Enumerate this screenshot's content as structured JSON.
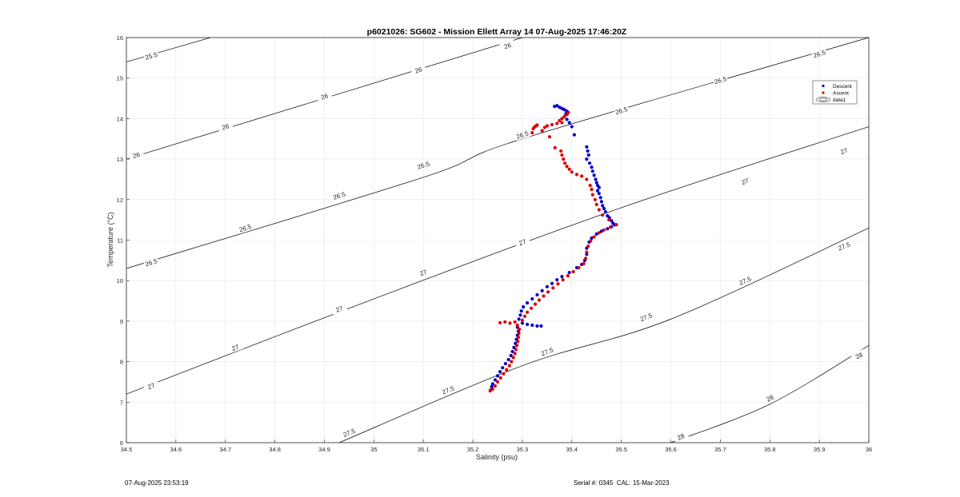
{
  "chart_data": {
    "type": "scatter",
    "title": "p6021026: SG602 - Mission Ellett Array 14 07-Aug-2025 17:46:20Z",
    "xlabel": "Salinity (psu)",
    "ylabel": "Temperature (°C)",
    "xlim": [
      34.5,
      36
    ],
    "ylim": [
      6,
      16
    ],
    "xticks": [
      34.5,
      34.6,
      34.7,
      34.8,
      34.9,
      35,
      35.1,
      35.2,
      35.3,
      35.4,
      35.5,
      35.6,
      35.7,
      35.8,
      35.9,
      36
    ],
    "xtick_labels": [
      "34.5",
      "34.6",
      "34.7",
      "34.8",
      "34.9",
      "35",
      "35.1",
      "35.2",
      "35.3",
      "35.4",
      "35.5",
      "35.6",
      "35.7",
      "35.8",
      "35.9",
      "36"
    ],
    "yticks": [
      6,
      7,
      8,
      9,
      10,
      11,
      12,
      13,
      14,
      15,
      16
    ],
    "ytick_labels": [
      "6",
      "7",
      "8",
      "9",
      "10",
      "11",
      "12",
      "13",
      "14",
      "15",
      "16"
    ],
    "grid": true,
    "legend_position": "top-right",
    "legend": [
      {
        "label": "Descent",
        "kind": "marker",
        "color": "#0000cc"
      },
      {
        "label": "Ascent",
        "kind": "marker",
        "color": "#dd0000"
      },
      {
        "label": "data1",
        "kind": "contour",
        "color": "#000000"
      }
    ],
    "contours": [
      {
        "label": "25.5",
        "points": [
          [
            34.5,
            15.4
          ],
          [
            34.67,
            16.0
          ]
        ],
        "label_positions": [
          [
            34.55,
            15.55
          ]
        ]
      },
      {
        "label": "26",
        "points": [
          [
            34.5,
            13.0
          ],
          [
            35.3,
            16.0
          ]
        ],
        "label_positions": [
          [
            34.52,
            13.1
          ],
          [
            34.7,
            13.8
          ],
          [
            34.9,
            14.55
          ],
          [
            35.09,
            15.2
          ],
          [
            35.27,
            15.8
          ]
        ]
      },
      {
        "label": "26.5",
        "points": [
          [
            34.5,
            10.3
          ],
          [
            35.1,
            12.55
          ],
          [
            35.3,
            13.5
          ],
          [
            36.0,
            16.0
          ]
        ],
        "label_positions": [
          [
            34.55,
            10.45
          ],
          [
            34.74,
            11.3
          ],
          [
            34.93,
            12.1
          ],
          [
            35.1,
            12.85
          ],
          [
            35.3,
            13.6
          ],
          [
            35.5,
            14.2
          ],
          [
            35.7,
            14.95
          ],
          [
            35.9,
            15.6
          ]
        ]
      },
      {
        "label": "27",
        "points": [
          [
            34.5,
            7.2
          ],
          [
            35.0,
            9.55
          ],
          [
            35.5,
            11.8
          ],
          [
            36.0,
            13.8
          ]
        ],
        "label_positions": [
          [
            34.55,
            7.4
          ],
          [
            34.72,
            8.35
          ],
          [
            34.93,
            9.3
          ],
          [
            35.1,
            10.2
          ],
          [
            35.3,
            10.95
          ],
          [
            35.75,
            12.45
          ],
          [
            35.95,
            13.2
          ]
        ]
      },
      {
        "label": "27.5",
        "points": [
          [
            34.93,
            6.0
          ],
          [
            35.3,
            7.9
          ],
          [
            35.6,
            9.05
          ],
          [
            36.0,
            11.3
          ]
        ],
        "label_positions": [
          [
            34.95,
            6.25
          ],
          [
            35.15,
            7.3
          ],
          [
            35.35,
            8.25
          ],
          [
            35.55,
            9.1
          ],
          [
            35.75,
            10.0
          ],
          [
            35.95,
            10.85
          ]
        ]
      },
      {
        "label": "28",
        "points": [
          [
            35.6,
            6.0
          ],
          [
            35.8,
            6.95
          ],
          [
            36.0,
            8.4
          ]
        ],
        "label_positions": [
          [
            35.62,
            6.15
          ],
          [
            35.8,
            7.1
          ],
          [
            35.98,
            8.15
          ]
        ]
      }
    ],
    "series": [
      {
        "name": "Descent",
        "color": "#0000cc",
        "points": [
          [
            35.365,
            14.3
          ],
          [
            35.37,
            14.32
          ],
          [
            35.375,
            14.28
          ],
          [
            35.38,
            14.25
          ],
          [
            35.385,
            14.22
          ],
          [
            35.39,
            14.18
          ],
          [
            35.388,
            14.12
          ],
          [
            35.385,
            14.05
          ],
          [
            35.39,
            13.98
          ],
          [
            35.395,
            13.9
          ],
          [
            35.4,
            13.8
          ],
          [
            35.405,
            13.6
          ],
          [
            35.43,
            13.3
          ],
          [
            35.432,
            13.2
          ],
          [
            35.434,
            13.1
          ],
          [
            35.43,
            13.0
          ],
          [
            35.436,
            12.9
          ],
          [
            35.44,
            12.8
          ],
          [
            35.442,
            12.7
          ],
          [
            35.445,
            12.6
          ],
          [
            35.448,
            12.5
          ],
          [
            35.45,
            12.42
          ],
          [
            35.452,
            12.35
          ],
          [
            35.455,
            12.3
          ],
          [
            35.452,
            12.22
          ],
          [
            35.455,
            12.15
          ],
          [
            35.458,
            12.05
          ],
          [
            35.46,
            11.95
          ],
          [
            35.462,
            11.85
          ],
          [
            35.465,
            11.78
          ],
          [
            35.468,
            11.7
          ],
          [
            35.472,
            11.6
          ],
          [
            35.476,
            11.55
          ],
          [
            35.48,
            11.48
          ],
          [
            35.483,
            11.42
          ],
          [
            35.486,
            11.38
          ],
          [
            35.48,
            11.33
          ],
          [
            35.472,
            11.28
          ],
          [
            35.46,
            11.22
          ],
          [
            35.45,
            11.15
          ],
          [
            35.44,
            11.05
          ],
          [
            35.435,
            10.95
          ],
          [
            35.43,
            10.8
          ],
          [
            35.43,
            10.65
          ],
          [
            35.426,
            10.5
          ],
          [
            35.42,
            10.4
          ],
          [
            35.41,
            10.32
          ],
          [
            35.395,
            10.2
          ],
          [
            35.38,
            10.1
          ],
          [
            35.37,
            10.02
          ],
          [
            35.36,
            9.93
          ],
          [
            35.35,
            9.85
          ],
          [
            35.34,
            9.75
          ],
          [
            35.33,
            9.65
          ],
          [
            35.32,
            9.55
          ],
          [
            35.31,
            9.45
          ],
          [
            35.302,
            9.35
          ],
          [
            35.298,
            9.25
          ],
          [
            35.296,
            9.15
          ],
          [
            35.293,
            9.05
          ],
          [
            35.3,
            8.95
          ],
          [
            35.31,
            8.92
          ],
          [
            35.32,
            8.9
          ],
          [
            35.33,
            8.88
          ],
          [
            35.338,
            8.88
          ],
          [
            35.29,
            8.85
          ],
          [
            35.292,
            8.75
          ],
          [
            35.29,
            8.65
          ],
          [
            35.288,
            8.55
          ],
          [
            35.286,
            8.45
          ],
          [
            35.283,
            8.35
          ],
          [
            35.28,
            8.25
          ],
          [
            35.277,
            8.15
          ],
          [
            35.272,
            8.05
          ],
          [
            35.266,
            7.95
          ],
          [
            35.26,
            7.85
          ],
          [
            35.255,
            7.75
          ],
          [
            35.25,
            7.65
          ],
          [
            35.245,
            7.55
          ],
          [
            35.24,
            7.45
          ],
          [
            35.238,
            7.38
          ],
          [
            35.236,
            7.3
          ]
        ]
      },
      {
        "name": "Ascent",
        "color": "#dd0000",
        "points": [
          [
            35.235,
            7.28
          ],
          [
            35.24,
            7.32
          ],
          [
            35.245,
            7.4
          ],
          [
            35.25,
            7.5
          ],
          [
            35.256,
            7.6
          ],
          [
            35.262,
            7.7
          ],
          [
            35.268,
            7.8
          ],
          [
            35.274,
            7.9
          ],
          [
            35.278,
            8.0
          ],
          [
            35.282,
            8.1
          ],
          [
            35.285,
            8.2
          ],
          [
            35.287,
            8.3
          ],
          [
            35.289,
            8.4
          ],
          [
            35.291,
            8.5
          ],
          [
            35.292,
            8.6
          ],
          [
            35.293,
            8.7
          ],
          [
            35.294,
            8.8
          ],
          [
            35.29,
            8.9
          ],
          [
            35.285,
            8.98
          ],
          [
            35.275,
            8.95
          ],
          [
            35.265,
            8.98
          ],
          [
            35.255,
            8.96
          ],
          [
            35.3,
            9.02
          ],
          [
            35.305,
            9.12
          ],
          [
            35.31,
            9.22
          ],
          [
            35.318,
            9.32
          ],
          [
            35.326,
            9.42
          ],
          [
            35.334,
            9.52
          ],
          [
            35.343,
            9.62
          ],
          [
            35.352,
            9.72
          ],
          [
            35.362,
            9.82
          ],
          [
            35.372,
            9.92
          ],
          [
            35.382,
            10.02
          ],
          [
            35.392,
            10.12
          ],
          [
            35.403,
            10.22
          ],
          [
            35.414,
            10.32
          ],
          [
            35.424,
            10.42
          ],
          [
            35.428,
            10.55
          ],
          [
            35.43,
            10.7
          ],
          [
            35.433,
            10.85
          ],
          [
            35.438,
            10.98
          ],
          [
            35.445,
            11.08
          ],
          [
            35.455,
            11.18
          ],
          [
            35.465,
            11.25
          ],
          [
            35.478,
            11.32
          ],
          [
            35.49,
            11.38
          ],
          [
            35.475,
            11.5
          ],
          [
            35.462,
            11.62
          ],
          [
            35.455,
            11.75
          ],
          [
            35.45,
            11.88
          ],
          [
            35.447,
            12.0
          ],
          [
            35.442,
            12.12
          ],
          [
            35.44,
            12.25
          ],
          [
            35.437,
            12.35
          ],
          [
            35.43,
            12.5
          ],
          [
            35.42,
            12.58
          ],
          [
            35.41,
            12.62
          ],
          [
            35.4,
            12.68
          ],
          [
            35.395,
            12.75
          ],
          [
            35.39,
            12.82
          ],
          [
            35.386,
            12.9
          ],
          [
            35.383,
            13.0
          ],
          [
            35.38,
            13.1
          ],
          [
            35.378,
            13.2
          ],
          [
            35.366,
            13.28
          ],
          [
            35.355,
            13.55
          ],
          [
            35.34,
            13.7
          ],
          [
            35.345,
            13.78
          ],
          [
            35.35,
            13.82
          ],
          [
            35.36,
            13.85
          ],
          [
            35.37,
            13.88
          ],
          [
            35.38,
            13.9
          ],
          [
            35.375,
            13.95
          ],
          [
            35.38,
            14.0
          ],
          [
            35.385,
            14.05
          ],
          [
            35.39,
            14.1
          ],
          [
            35.393,
            14.15
          ],
          [
            35.32,
            13.65
          ],
          [
            35.322,
            13.75
          ],
          [
            35.325,
            13.8
          ],
          [
            35.328,
            13.82
          ],
          [
            35.33,
            13.84
          ]
        ]
      }
    ]
  },
  "footer": {
    "left": "07-Aug-2025 23:53:19",
    "right": "Serial #: 0345  CAL: 15-Mar-2023"
  },
  "colors": {
    "descent": "#0000cc",
    "ascent": "#dd0000",
    "contour": "#000000",
    "grid": "#e6e6e6",
    "axis": "#262626"
  }
}
